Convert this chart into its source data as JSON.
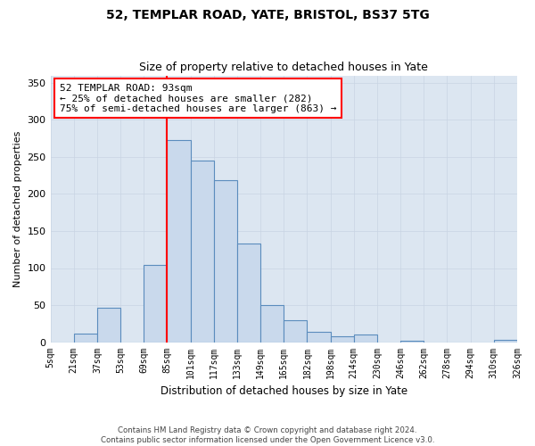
{
  "title1": "52, TEMPLAR ROAD, YATE, BRISTOL, BS37 5TG",
  "title2": "Size of property relative to detached houses in Yate",
  "xlabel": "Distribution of detached houses by size in Yate",
  "ylabel": "Number of detached properties",
  "footer1": "Contains HM Land Registry data © Crown copyright and database right 2024.",
  "footer2": "Contains public sector information licensed under the Open Government Licence v3.0.",
  "bin_labels": [
    "5sqm",
    "21sqm",
    "37sqm",
    "53sqm",
    "69sqm",
    "85sqm",
    "101sqm",
    "117sqm",
    "133sqm",
    "149sqm",
    "165sqm",
    "182sqm",
    "198sqm",
    "214sqm",
    "230sqm",
    "246sqm",
    "262sqm",
    "278sqm",
    "294sqm",
    "310sqm",
    "326sqm"
  ],
  "bar_values": [
    0,
    11,
    46,
    0,
    104,
    273,
    245,
    219,
    133,
    50,
    30,
    14,
    8,
    10,
    0,
    2,
    0,
    0,
    0,
    3
  ],
  "bar_color": "#c9d9ec",
  "bar_edge_color": "#5b8cbd",
  "vline_color": "red",
  "vline_bin_index": 5,
  "annotation_text": "52 TEMPLAR ROAD: 93sqm\n← 25% of detached houses are smaller (282)\n75% of semi-detached houses are larger (863) →",
  "annotation_box_color": "white",
  "annotation_box_edge_color": "red",
  "ylim": [
    0,
    360
  ],
  "yticks": [
    0,
    50,
    100,
    150,
    200,
    250,
    300,
    350
  ],
  "grid_color": "#c8d4e3",
  "bg_color": "#dce6f1",
  "figsize": [
    6.0,
    5.0
  ],
  "dpi": 100
}
